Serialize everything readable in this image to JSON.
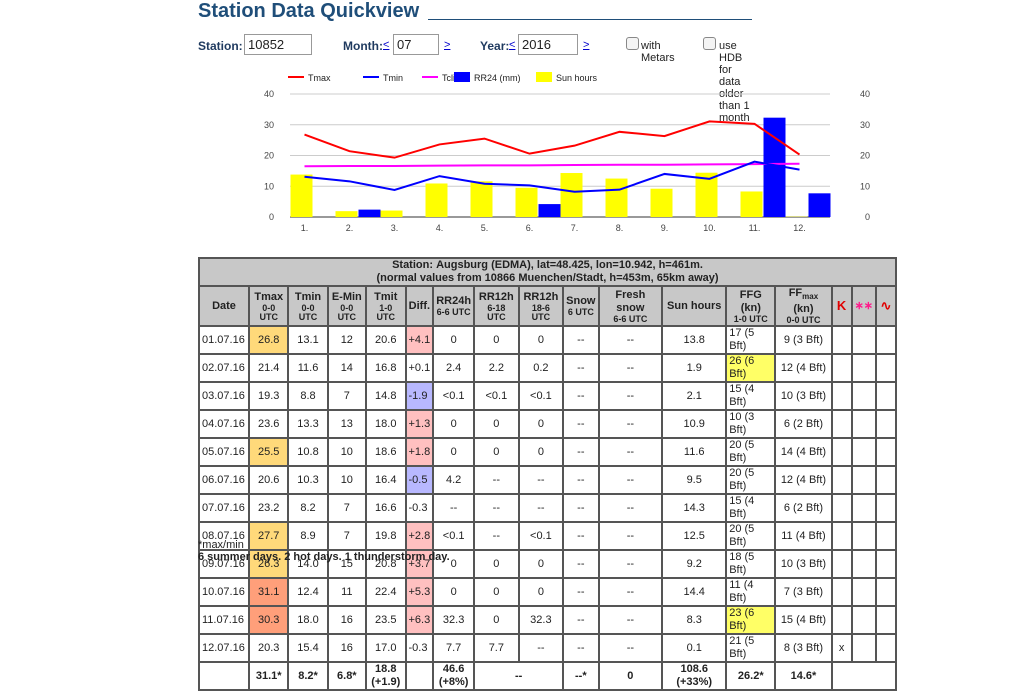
{
  "page": {
    "title": "Station Data Quickview"
  },
  "form": {
    "station_label": "Station:",
    "station_value": "10852",
    "month_label": "Month:",
    "month_prev": "<",
    "month_value": "07",
    "month_next": ">",
    "year_label": "Year:",
    "year_prev": "<",
    "year_value": "2016",
    "year_next": ">",
    "metars_label": "with Metars",
    "hdb_label": "use HDB for data older than 1 month"
  },
  "chart_data": {
    "type": "bar",
    "title": "",
    "categories": [
      "1.",
      "2.",
      "3.",
      "4.",
      "5.",
      "6.",
      "7.",
      "8.",
      "9.",
      "10.",
      "11.",
      "12."
    ],
    "ylim": [
      0,
      40
    ],
    "yticks": [
      "0",
      "10",
      "20",
      "30",
      "40"
    ],
    "grid": true,
    "legend_position": "top",
    "series": [
      {
        "name": "Tmax",
        "kind": "line",
        "color": "#ff0000",
        "values": [
          26.8,
          21.4,
          19.3,
          23.6,
          25.5,
          20.6,
          23.2,
          27.7,
          26.3,
          31.1,
          30.3,
          20.3
        ]
      },
      {
        "name": "Tmin",
        "kind": "line",
        "color": "#0000ff",
        "values": [
          13.1,
          11.6,
          8.8,
          13.3,
          10.8,
          10.3,
          8.2,
          8.9,
          14.0,
          12.4,
          18.0,
          15.4
        ]
      },
      {
        "name": "Tclim",
        "kind": "line",
        "color": "#ff00ff",
        "values": [
          16.5,
          16.6,
          16.6,
          16.7,
          16.8,
          16.8,
          16.9,
          17.0,
          17.0,
          17.1,
          17.2,
          17.3
        ]
      },
      {
        "name": "RR24 (mm)",
        "kind": "bar",
        "color": "#0000ff",
        "values": [
          0,
          2.4,
          0.05,
          0,
          0,
          4.2,
          0,
          0.05,
          0,
          0,
          32.3,
          7.7
        ]
      },
      {
        "name": "Sun hours",
        "kind": "bar",
        "color": "#ffff00",
        "values": [
          13.8,
          1.9,
          2.1,
          10.9,
          11.6,
          9.5,
          14.3,
          12.5,
          9.2,
          14.4,
          8.3,
          0.1
        ]
      }
    ]
  },
  "table": {
    "station_line1_pre": "Station: ",
    "station_name": "Augsburg",
    "station_line1_post": " (EDMA), lat=48.425, lon=10.942, h=461m.",
    "station_line2_pre": "(normal values from ",
    "station_line2_bold": "10866 Muenchen/Stadt, h=453m, 65km away)",
    "headers": [
      {
        "main": "Date",
        "sub": ""
      },
      {
        "main": "Tmax",
        "sub": "0-0 UTC"
      },
      {
        "main": "Tmin",
        "sub": "0-0 UTC"
      },
      {
        "main": "E-Min",
        "sub": "0-0 UTC"
      },
      {
        "main": "Tmit",
        "sub": "1-0 UTC"
      },
      {
        "main": "Diff.",
        "sub": ""
      },
      {
        "main": "RR24h",
        "sub": "6-6 UTC"
      },
      {
        "main": "RR12h",
        "sub": "6-18 UTC"
      },
      {
        "main": "RR12h",
        "sub": "18-6 UTC"
      },
      {
        "main": "Snow",
        "sub": "6 UTC"
      },
      {
        "main": "Fresh snow",
        "sub": "6-6 UTC"
      },
      {
        "main": "Sun hours",
        "sub": ""
      },
      {
        "main": "FFG (kn)",
        "sub": "1-0 UTC"
      },
      {
        "main": "FF",
        "main_sub": "max",
        "main_post": " (kn)",
        "sub": "0-0 UTC"
      }
    ],
    "icon_headers": [
      "thunderstorm-icon",
      "haze-icon",
      "fog-icon"
    ],
    "rows": [
      {
        "date": "01.07.16",
        "tmax": "26.8",
        "tmax_class": "warm",
        "tmin": "13.1",
        "emin": "12",
        "tmit": "20.6",
        "diff": "+4.1",
        "diff_class": "pos",
        "rr24": "0",
        "rr12a": "0",
        "rr12b": "0",
        "snow": "--",
        "fresh": "--",
        "sun": "13.8",
        "ffg": "17 (5 Bft)",
        "ffg_class": "",
        "ffmax": "9 (3 Bft)",
        "i1": "",
        "i2": "",
        "i3": ""
      },
      {
        "date": "02.07.16",
        "tmax": "21.4",
        "tmax_class": "",
        "tmin": "11.6",
        "emin": "14",
        "tmit": "16.8",
        "diff": "+0.1",
        "diff_class": "",
        "rr24": "2.4",
        "rr12a": "2.2",
        "rr12b": "0.2",
        "snow": "--",
        "fresh": "--",
        "sun": "1.9",
        "ffg": "26 (6 Bft)",
        "ffg_class": "gust",
        "ffmax": "12 (4 Bft)",
        "i1": "",
        "i2": "",
        "i3": ""
      },
      {
        "date": "03.07.16",
        "tmax": "19.3",
        "tmax_class": "",
        "tmin": "8.8",
        "emin": "7",
        "tmit": "14.8",
        "diff": "-1.9",
        "diff_class": "neg",
        "rr24": "<0.1",
        "rr12a": "<0.1",
        "rr12b": "<0.1",
        "snow": "--",
        "fresh": "--",
        "sun": "2.1",
        "ffg": "15 (4 Bft)",
        "ffg_class": "",
        "ffmax": "10 (3 Bft)",
        "i1": "",
        "i2": "",
        "i3": ""
      },
      {
        "date": "04.07.16",
        "tmax": "23.6",
        "tmax_class": "",
        "tmin": "13.3",
        "emin": "13",
        "tmit": "18.0",
        "diff": "+1.3",
        "diff_class": "pos",
        "rr24": "0",
        "rr12a": "0",
        "rr12b": "0",
        "snow": "--",
        "fresh": "--",
        "sun": "10.9",
        "ffg": "10 (3 Bft)",
        "ffg_class": "",
        "ffmax": "6 (2 Bft)",
        "i1": "",
        "i2": "",
        "i3": ""
      },
      {
        "date": "05.07.16",
        "tmax": "25.5",
        "tmax_class": "warm",
        "tmin": "10.8",
        "emin": "10",
        "tmit": "18.6",
        "diff": "+1.8",
        "diff_class": "pos",
        "rr24": "0",
        "rr12a": "0",
        "rr12b": "0",
        "snow": "--",
        "fresh": "--",
        "sun": "11.6",
        "ffg": "20 (5 Bft)",
        "ffg_class": "",
        "ffmax": "14 (4 Bft)",
        "i1": "",
        "i2": "",
        "i3": ""
      },
      {
        "date": "06.07.16",
        "tmax": "20.6",
        "tmax_class": "",
        "tmin": "10.3",
        "emin": "10",
        "tmit": "16.4",
        "diff": "-0.5",
        "diff_class": "neg",
        "rr24": "4.2",
        "rr12a": "--",
        "rr12b": "--",
        "snow": "--",
        "fresh": "--",
        "sun": "9.5",
        "ffg": "20 (5 Bft)",
        "ffg_class": "",
        "ffmax": "12 (4 Bft)",
        "i1": "",
        "i2": "",
        "i3": ""
      },
      {
        "date": "07.07.16",
        "tmax": "23.2",
        "tmax_class": "",
        "tmin": "8.2",
        "emin": "7",
        "tmit": "16.6",
        "diff": "-0.3",
        "diff_class": "",
        "rr24": "--",
        "rr12a": "--",
        "rr12b": "--",
        "snow": "--",
        "fresh": "--",
        "sun": "14.3",
        "ffg": "15 (4 Bft)",
        "ffg_class": "",
        "ffmax": "6 (2 Bft)",
        "i1": "",
        "i2": "",
        "i3": ""
      },
      {
        "date": "08.07.16",
        "tmax": "27.7",
        "tmax_class": "warm",
        "tmin": "8.9",
        "emin": "7",
        "tmit": "19.8",
        "diff": "+2.8",
        "diff_class": "pos",
        "rr24": "<0.1",
        "rr12a": "--",
        "rr12b": "<0.1",
        "snow": "--",
        "fresh": "--",
        "sun": "12.5",
        "ffg": "20 (5 Bft)",
        "ffg_class": "",
        "ffmax": "11 (4 Bft)",
        "i1": "",
        "i2": "",
        "i3": ""
      },
      {
        "date": "09.07.16",
        "tmax": "26.3",
        "tmax_class": "warm",
        "tmin": "14.0",
        "emin": "15",
        "tmit": "20.8",
        "diff": "+3.7",
        "diff_class": "pos",
        "rr24": "0",
        "rr12a": "0",
        "rr12b": "0",
        "snow": "--",
        "fresh": "--",
        "sun": "9.2",
        "ffg": "18 (5 Bft)",
        "ffg_class": "",
        "ffmax": "10 (3 Bft)",
        "i1": "",
        "i2": "",
        "i3": ""
      },
      {
        "date": "10.07.16",
        "tmax": "31.1",
        "tmax_class": "hot",
        "tmin": "12.4",
        "emin": "11",
        "tmit": "22.4",
        "diff": "+5.3",
        "diff_class": "pos",
        "rr24": "0",
        "rr12a": "0",
        "rr12b": "0",
        "snow": "--",
        "fresh": "--",
        "sun": "14.4",
        "ffg": "11 (4 Bft)",
        "ffg_class": "",
        "ffmax": "7 (3 Bft)",
        "i1": "",
        "i2": "",
        "i3": ""
      },
      {
        "date": "11.07.16",
        "tmax": "30.3",
        "tmax_class": "hot",
        "tmin": "18.0",
        "emin": "16",
        "tmit": "23.5",
        "diff": "+6.3",
        "diff_class": "pos",
        "rr24": "32.3",
        "rr12a": "0",
        "rr12b": "32.3",
        "snow": "--",
        "fresh": "--",
        "sun": "8.3",
        "ffg": "23 (6 Bft)",
        "ffg_class": "gust",
        "ffmax": "15 (4 Bft)",
        "i1": "",
        "i2": "",
        "i3": ""
      },
      {
        "date": "12.07.16",
        "tmax": "20.3",
        "tmax_class": "",
        "tmin": "15.4",
        "emin": "16",
        "tmit": "17.0",
        "diff": "-0.3",
        "diff_class": "",
        "rr24": "7.7",
        "rr12a": "7.7",
        "rr12b": "--",
        "snow": "--",
        "fresh": "--",
        "sun": "0.1",
        "ffg": "21 (5 Bft)",
        "ffg_class": "",
        "ffmax": "8 (3 Bft)",
        "i1": "x",
        "i2": "",
        "i3": ""
      }
    ],
    "summary": {
      "tmax": "31.1*",
      "tmin": "8.2*",
      "emin": "6.8*",
      "tmit_1": "18.8",
      "tmit_2": "(+1.9)",
      "rr24_1": "46.6",
      "rr24_2": "(+8%)",
      "rr12": "--",
      "snow": "--*",
      "fresh": "0",
      "sun_1": "108.6",
      "sun_2": "(+33%)",
      "ffg": "26.2*",
      "ffmax": "14.6*"
    }
  },
  "notes": {
    "footnote": "*max/min",
    "summary": "6 summer days. 2 hot days. 1 thunderstorm day."
  }
}
